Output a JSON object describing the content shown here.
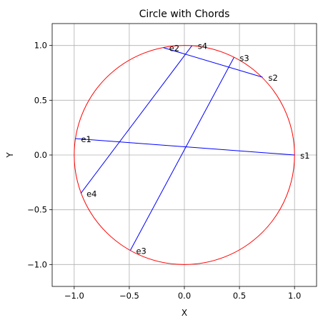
{
  "chart_data": {
    "type": "line",
    "title": "Circle with Chords",
    "xlabel": "X",
    "ylabel": "Y",
    "xlim": [
      -1.2,
      1.2
    ],
    "ylim": [
      -1.2,
      1.2
    ],
    "xticks": [
      -1.0,
      -0.5,
      0.0,
      0.5,
      1.0
    ],
    "yticks": [
      -1.0,
      -0.5,
      0.0,
      0.5,
      1.0
    ],
    "xtick_labels": [
      "−1.0",
      "−0.5",
      "0.0",
      "0.5",
      "1.0"
    ],
    "ytick_labels": [
      "−1.0",
      "−0.5",
      "0.0",
      "0.5",
      "1.0"
    ],
    "grid": true,
    "circle": {
      "center": [
        0,
        0
      ],
      "radius": 1,
      "color": "#ff0000"
    },
    "chord_color": "#0000ff",
    "chords": [
      {
        "start": {
          "label": "s1",
          "x": 1.0,
          "y": 0.0
        },
        "end": {
          "label": "e1",
          "x": -0.99,
          "y": 0.15
        }
      },
      {
        "start": {
          "label": "s2",
          "x": 0.71,
          "y": 0.71
        },
        "end": {
          "label": "e2",
          "x": -0.19,
          "y": 0.98
        }
      },
      {
        "start": {
          "label": "s3",
          "x": 0.45,
          "y": 0.89
        },
        "end": {
          "label": "e3",
          "x": -0.49,
          "y": -0.87
        }
      },
      {
        "start": {
          "label": "s4",
          "x": 0.07,
          "y": 1.0
        },
        "end": {
          "label": "e4",
          "x": -0.94,
          "y": -0.35
        }
      }
    ]
  }
}
